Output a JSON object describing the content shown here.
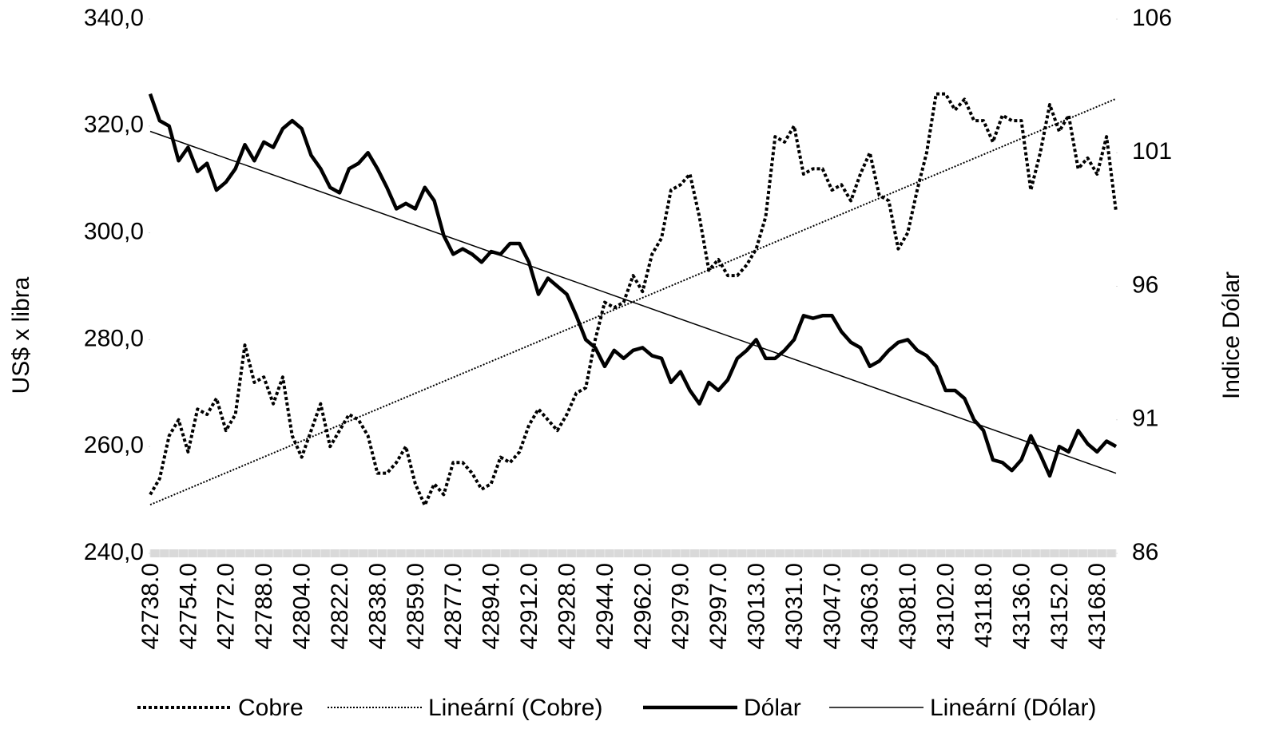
{
  "chart_data": {
    "type": "line",
    "y_label": "US$ x libra",
    "y2_label": "Indice Dólar",
    "categories": [
      "42738.0",
      null,
      null,
      null,
      "42754.0",
      null,
      null,
      null,
      "42772.0",
      null,
      null,
      null,
      "42788.0",
      null,
      null,
      null,
      "42804.0",
      null,
      null,
      null,
      "42822.0",
      null,
      null,
      null,
      "42838.0",
      null,
      null,
      null,
      "42859.0",
      null,
      null,
      null,
      "42877.0",
      null,
      null,
      null,
      "42894.0",
      null,
      null,
      null,
      "42912.0",
      null,
      null,
      null,
      "42928.0",
      null,
      null,
      null,
      "42944.0",
      null,
      null,
      null,
      "42962.0",
      null,
      null,
      null,
      "42979.0",
      null,
      null,
      null,
      "42997.0",
      null,
      null,
      null,
      "43013.0",
      null,
      null,
      null,
      "43031.0",
      null,
      null,
      null,
      "43047.0",
      null,
      null,
      null,
      "43063.0",
      null,
      null,
      null,
      "43081.0",
      null,
      null,
      null,
      "43102.0",
      null,
      null,
      null,
      "43118.0",
      null,
      null,
      null,
      "43136.0",
      null,
      null,
      null,
      "43152.0",
      null,
      null,
      null,
      "43168.0",
      null,
      null
    ],
    "ylim": [
      240,
      340
    ],
    "yticks": [
      {
        "value": 240,
        "label": "240,0"
      },
      {
        "value": 260,
        "label": "260,0"
      },
      {
        "value": 280,
        "label": "280,0"
      },
      {
        "value": 300,
        "label": "300,0"
      },
      {
        "value": 320,
        "label": "320,0"
      },
      {
        "value": 340,
        "label": "340,0"
      }
    ],
    "y2lim": [
      86,
      106
    ],
    "y2ticks": [
      86,
      91,
      96,
      101,
      106
    ],
    "series": [
      {
        "name": "Cobre",
        "color": "#000000",
        "style": "dashed",
        "width": 4,
        "axis": "y",
        "values": [
          251,
          254,
          262,
          265,
          259,
          267,
          266,
          269,
          263,
          266,
          279,
          272,
          273,
          268,
          273,
          262,
          258,
          263,
          268,
          260,
          263,
          266,
          265,
          262,
          255,
          255,
          257,
          260,
          253,
          249,
          253,
          251,
          257,
          257,
          255,
          252,
          253,
          258,
          257,
          259,
          264,
          267,
          265,
          263,
          266,
          270,
          271,
          280,
          287,
          286,
          287,
          292,
          289,
          296,
          299,
          308,
          309,
          311,
          303,
          293,
          295,
          292,
          292,
          294,
          297,
          303,
          318,
          317,
          320,
          311,
          312,
          312,
          308,
          309,
          306,
          311,
          315,
          307,
          306,
          297,
          300,
          308,
          315,
          326,
          326,
          323,
          325,
          321,
          321,
          317,
          322,
          321,
          321,
          308,
          315,
          324,
          319,
          322,
          312,
          314,
          311,
          318,
          304
        ]
      },
      {
        "name": "Dólar",
        "color": "#000000",
        "style": "solid",
        "width": 4.5,
        "axis": "y2",
        "values": [
          103.2,
          102.2,
          102.0,
          100.7,
          101.2,
          100.3,
          100.6,
          99.6,
          99.9,
          100.4,
          101.3,
          100.7,
          101.4,
          101.2,
          101.9,
          102.2,
          101.9,
          100.9,
          100.4,
          99.7,
          99.5,
          100.4,
          100.6,
          101.0,
          100.4,
          99.7,
          98.9,
          99.1,
          98.9,
          99.7,
          99.2,
          97.9,
          97.2,
          97.4,
          97.2,
          96.9,
          97.3,
          97.2,
          97.6,
          97.6,
          96.9,
          95.7,
          96.3,
          96.0,
          95.7,
          94.9,
          94.0,
          93.7,
          93.0,
          93.6,
          93.3,
          93.6,
          93.7,
          93.4,
          93.3,
          92.4,
          92.8,
          92.1,
          91.6,
          92.4,
          92.1,
          92.5,
          93.3,
          93.6,
          94.0,
          93.3,
          93.3,
          93.6,
          94.0,
          94.9,
          94.8,
          94.9,
          94.9,
          94.3,
          93.9,
          93.7,
          93.0,
          93.2,
          93.6,
          93.9,
          94.0,
          93.6,
          93.4,
          93.0,
          92.1,
          92.1,
          91.8,
          91.0,
          90.6,
          89.5,
          89.4,
          89.1,
          89.5,
          90.4,
          89.7,
          88.9,
          90.0,
          89.8,
          90.6,
          90.1,
          89.8,
          90.2,
          90.0
        ]
      }
    ],
    "trendlines": [
      {
        "name": "Lineární (Cobre)",
        "color": "#000000",
        "style": "dotted",
        "width": 2,
        "axis": "y",
        "start": 249.1,
        "end": 325.1
      },
      {
        "name": "Lineární (Dólar)",
        "color": "#000000",
        "style": "solid",
        "width": 1.5,
        "axis": "y2",
        "start": 101.8,
        "end": 89.0
      }
    ]
  }
}
